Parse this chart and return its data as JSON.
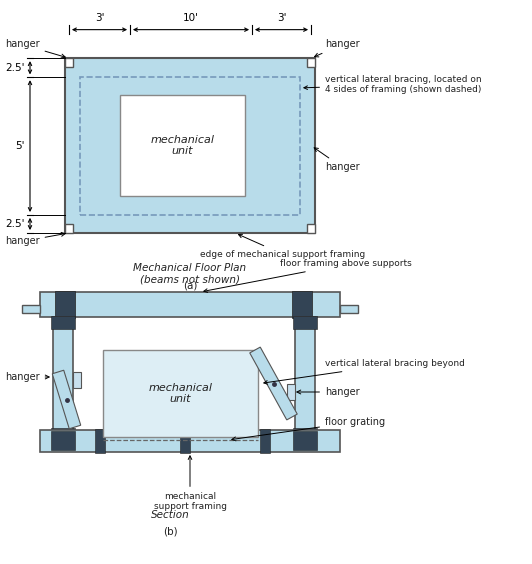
{
  "bg_color": "#ffffff",
  "light_blue": "#b8dcea",
  "outline": "#555555",
  "black": "#000000",
  "dark_block": "#334455",
  "text_color": "#222222",
  "title_a": "Mechanical Floor Plan\n(beams not shown)",
  "title_b": "Section",
  "label_a": "(a)",
  "label_b": "(b)",
  "dim_3left": "3'",
  "dim_10": "10'",
  "dim_3right": "3'",
  "dim_25top": "2.5'",
  "dim_5": "5'",
  "dim_25bot": "2.5'",
  "ann_top_left": "hanger",
  "ann_top_right": "hanger",
  "ann_mid_right": "hanger",
  "ann_bot_left": "hanger",
  "ann_vbrace": "vertical lateral bracing, located on\n4 sides of framing (shown dashed)",
  "ann_edge": "edge of mechanical support framing",
  "ann_mech_unit": "mechanical\nunit",
  "ann_floor_framing": "floor framing above supports",
  "ann_vbrace_b": "vertical lateral bracing beyond",
  "ann_hanger_b": "hanger",
  "ann_floor_grating": "floor grating",
  "ann_mech_support": "mechanical\nsupport framing",
  "ann_hanger_left_b": "hanger",
  "ann_mech_unit_b": "mechanical\nunit"
}
